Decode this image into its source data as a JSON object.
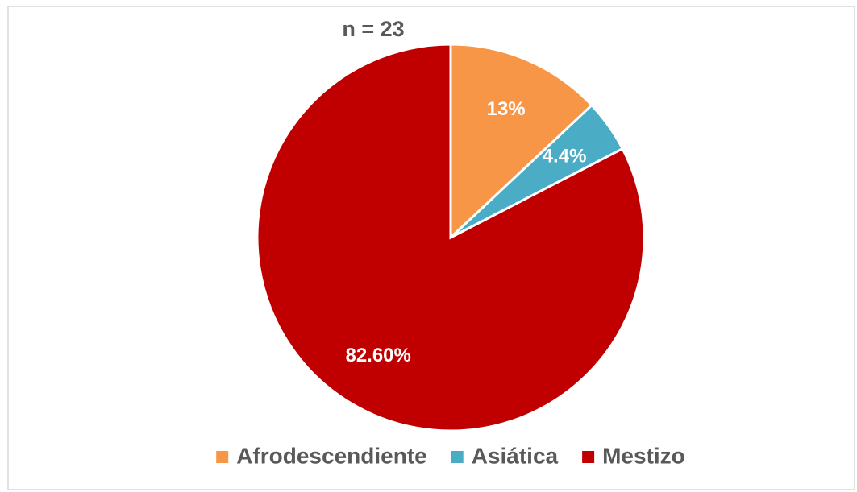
{
  "chart_data": {
    "type": "pie",
    "title": "n = 23",
    "categories": [
      "Afrodescendiente",
      "Asiática",
      "Mestizo"
    ],
    "values": [
      13,
      4.4,
      82.6
    ],
    "value_labels": [
      "13%",
      "4.4%",
      "82.60%"
    ],
    "colors": [
      "#f79646",
      "#4bacc6",
      "#c00000"
    ],
    "legend": "bottom"
  }
}
